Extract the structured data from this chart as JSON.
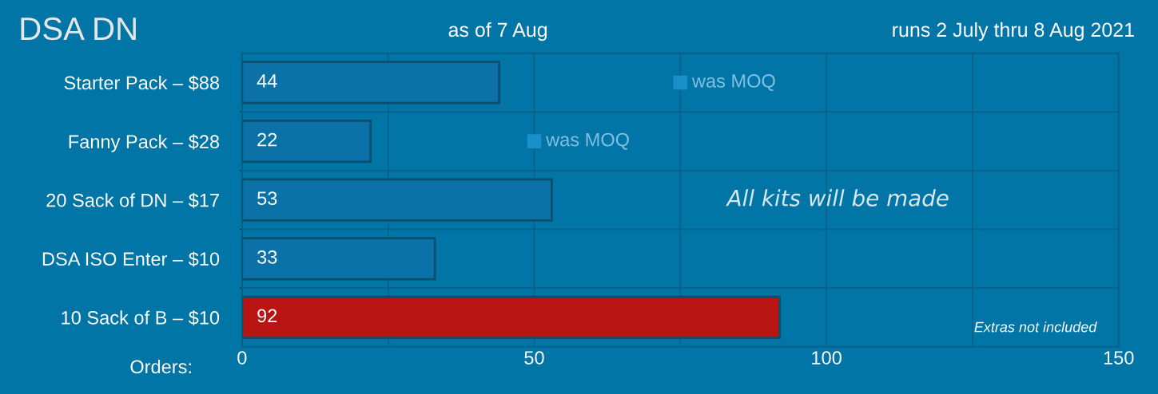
{
  "chart_data": {
    "type": "bar",
    "orientation": "horizontal",
    "title": "DSA DN",
    "subtitle": "as of 7 Aug",
    "xlabel": "Orders:",
    "categories": [
      "Starter Pack – $88",
      "Fanny Pack – $28",
      "20 Sack of DN – $17",
      "DSA ISO Enter – $10",
      "10 Sack of B – $10"
    ],
    "series": [
      {
        "colors": [
          "#0a72a6",
          "#0a72a6",
          "#0a72a6",
          "#0a72a6",
          "#b81414"
        ],
        "values": [
          44,
          22,
          53,
          33,
          92
        ]
      },
      {
        "type": "scatter",
        "color": "#1a8fc8",
        "marker": "square",
        "values": [
          75,
          50,
          null,
          null,
          null
        ],
        "value_labels": [
          null,
          null,
          null,
          null,
          null
        ]
      }
    ],
    "xlim": [
      0,
      150
    ],
    "xticks": [
      0,
      {
        "value": 25,
        "label": null
      },
      50,
      {
        "value": 75,
        "label": null
      },
      100,
      {
        "value": 125,
        "label": null
      },
      150
    ],
    "grid": true,
    "data_labels": true,
    "annotations": [
      "runs 2 July thru 8 Aug 2021",
      "was MOQ",
      "was MOQ",
      "All kits will be made",
      "Extras not included"
    ]
  }
}
